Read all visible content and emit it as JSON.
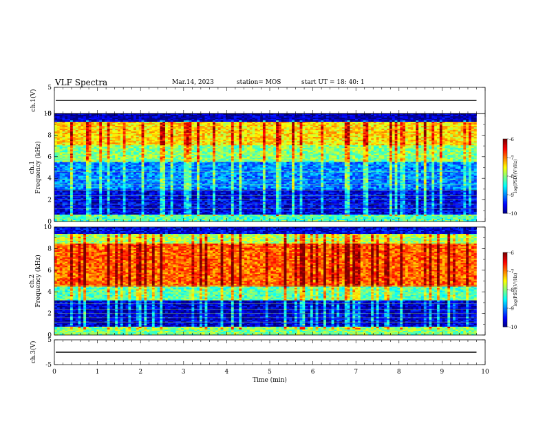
{
  "header": {
    "title": "VLF Spectra",
    "date": "Mar.14, 2023",
    "station": "station= MOS",
    "start": "start  UT =   18: 40: 1"
  },
  "chart_data": [
    {
      "type": "line",
      "panel": "ch1-waveform",
      "ylabel": "ch.1(V)",
      "ylim": [
        -5,
        5
      ],
      "yticks": [
        "5",
        "-5"
      ],
      "series_level": 0
    },
    {
      "type": "heatmap",
      "panel": "ch1-spectrogram",
      "ylabel": "ch.1\nFrequency (kHz)",
      "ylabel_top": "ch.1",
      "ylabel_main": "Frequency (kHz)",
      "ylim": [
        0,
        10
      ],
      "yticks": [
        "0",
        "2",
        "4",
        "6",
        "8",
        "10"
      ],
      "colorbar": {
        "label": "log(PSD)(V²/Hz)",
        "ticks": [
          "-6",
          "-7",
          "-8",
          "-9",
          "-10"
        ],
        "range": [
          -10,
          -6
        ]
      },
      "background_level": -9.3,
      "bands": [
        {
          "from": 0.0,
          "to": 0.6,
          "level": -8.2
        },
        {
          "from": 0.6,
          "to": 3.0,
          "level": -9.6
        },
        {
          "from": 3.0,
          "to": 5.5,
          "level": -9.0
        },
        {
          "from": 5.5,
          "to": 7.0,
          "level": -8.0
        },
        {
          "from": 7.0,
          "to": 9.2,
          "level": -7.4
        },
        {
          "from": 9.2,
          "to": 10.0,
          "level": -9.8
        }
      ]
    },
    {
      "type": "heatmap",
      "panel": "ch2-spectrogram",
      "ylabel_top": "ch.2",
      "ylabel_main": "Frequency (kHz)",
      "ylim": [
        0,
        10
      ],
      "yticks": [
        "0",
        "2",
        "4",
        "6",
        "8",
        "10"
      ],
      "colorbar": {
        "label": "log(PSD)(V²/Hz)",
        "ticks": [
          "-6",
          "-7",
          "-8",
          "-9",
          "-10"
        ],
        "range": [
          -10,
          -6
        ]
      },
      "bands": [
        {
          "from": 0.0,
          "to": 0.8,
          "level": -8.0
        },
        {
          "from": 0.8,
          "to": 3.2,
          "level": -9.7
        },
        {
          "from": 3.2,
          "to": 4.5,
          "level": -8.2
        },
        {
          "from": 4.5,
          "to": 8.5,
          "level": -6.9
        },
        {
          "from": 8.5,
          "to": 9.4,
          "level": -7.8
        },
        {
          "from": 9.4,
          "to": 10.0,
          "level": -9.6
        }
      ]
    },
    {
      "type": "line",
      "panel": "ch3-waveform",
      "ylabel": "ch.3(V)",
      "ylim": [
        -5,
        5
      ],
      "yticks": [
        "5",
        "-5"
      ],
      "series_level": 0
    }
  ],
  "xaxis": {
    "label": "Time  (min)",
    "xlim": [
      0,
      10
    ],
    "ticks": [
      "0",
      "1",
      "2",
      "3",
      "4",
      "5",
      "6",
      "7",
      "8",
      "9",
      "10"
    ],
    "data_end": 9.8
  }
}
